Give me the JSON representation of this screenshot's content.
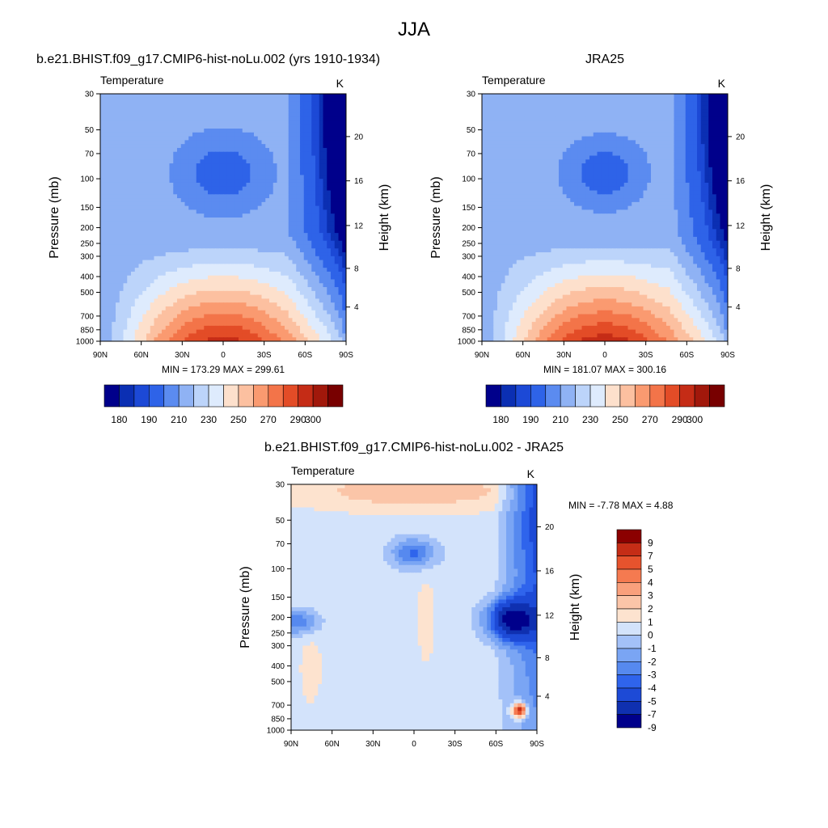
{
  "page": {
    "title": "JJA"
  },
  "panel_titles": {
    "left": "b.e21.BHIST.f09_g17.CMIP6-hist-noLu.002 (yrs 1910-1934)",
    "right": "JRA25",
    "bottom": "b.e21.BHIST.f09_g17.CMIP6-hist-noLu.002 - JRA25"
  },
  "common": {
    "variable": "Temperature",
    "units": "K",
    "ylabel": "Pressure (mb)",
    "ylabel_right": "Height (km)",
    "x_ticks": [
      "90N",
      "60N",
      "30N",
      "0",
      "30S",
      "60S",
      "90S"
    ],
    "p_ticks": [
      "30",
      "50",
      "70",
      "100",
      "150",
      "200",
      "250",
      "300",
      "400",
      "500",
      "700",
      "850",
      "1000"
    ],
    "height_ticks": [
      "4",
      "8",
      "12",
      "16",
      "20"
    ]
  },
  "colors": {
    "abs_palette": [
      "#00008b",
      "#0b2fb3",
      "#1c49d6",
      "#2e63e8",
      "#5b8bf0",
      "#8fb2f4",
      "#bcd4fa",
      "#deebfd",
      "#fde0cc",
      "#fcc0a0",
      "#fa9a70",
      "#f37449",
      "#e34c27",
      "#c52c16",
      "#a1180b",
      "#780000"
    ],
    "diff_palette": [
      "#00008b",
      "#0f30b0",
      "#1d4ad6",
      "#2f64ec",
      "#5689ef",
      "#7aa5f4",
      "#a3c1f8",
      "#d3e3fb",
      "#fde3cf",
      "#fbc5a8",
      "#f9a07c",
      "#f57a50",
      "#e6532d",
      "#c52d16",
      "#8b0000"
    ]
  },
  "chart_data": [
    {
      "type": "heatmap",
      "title": "b.e21.BHIST.f09_g17.CMIP6-hist-noLu.002 (yrs 1910-1934)",
      "subtitle": "Temperature",
      "units": "K",
      "xlabel": "",
      "ylabel": "Pressure (mb)",
      "ylabel_right": "Height (km)",
      "x_ticks": [
        "90N",
        "60N",
        "30N",
        "0",
        "30S",
        "60S",
        "90S"
      ],
      "ylim": [
        30,
        1000
      ],
      "y_scale": "log",
      "min_text": "MIN = 173.29",
      "max_text": "MAX = 299.61",
      "min": 173.29,
      "max": 299.61,
      "colorbar_labels": [
        "180",
        "190",
        "210",
        "230",
        "250",
        "270",
        "290",
        "300"
      ],
      "legend_position": "bottom"
    },
    {
      "type": "heatmap",
      "title": "JRA25",
      "subtitle": "Temperature",
      "units": "K",
      "xlabel": "",
      "ylabel": "Pressure (mb)",
      "ylabel_right": "Height (km)",
      "x_ticks": [
        "90N",
        "60N",
        "30N",
        "0",
        "30S",
        "60S",
        "90S"
      ],
      "ylim": [
        30,
        1000
      ],
      "y_scale": "log",
      "min_text": "MIN = 181.07",
      "max_text": "MAX = 300.16",
      "min": 181.07,
      "max": 300.16,
      "colorbar_labels": [
        "180",
        "190",
        "210",
        "230",
        "250",
        "270",
        "290",
        "300"
      ],
      "legend_position": "bottom"
    },
    {
      "type": "heatmap",
      "title": "b.e21.BHIST.f09_g17.CMIP6-hist-noLu.002 - JRA25",
      "subtitle": "Temperature",
      "units": "K",
      "xlabel": "",
      "ylabel": "Pressure (mb)",
      "ylabel_right": "Height (km)",
      "x_ticks": [
        "90N",
        "60N",
        "30N",
        "0",
        "30S",
        "60S",
        "90S"
      ],
      "ylim": [
        30,
        1000
      ],
      "y_scale": "log",
      "min_label": "MIN =",
      "min_value": "-7.78",
      "max_label": "MAX =",
      "max_value": "4.88",
      "min": -7.78,
      "max": 4.88,
      "colorbar_labels": [
        "9",
        "7",
        "5",
        "4",
        "3",
        "2",
        "1",
        "0",
        "-1",
        "-2",
        "-3",
        "-4",
        "-5",
        "-7",
        "-9"
      ],
      "legend_position": "right"
    }
  ]
}
